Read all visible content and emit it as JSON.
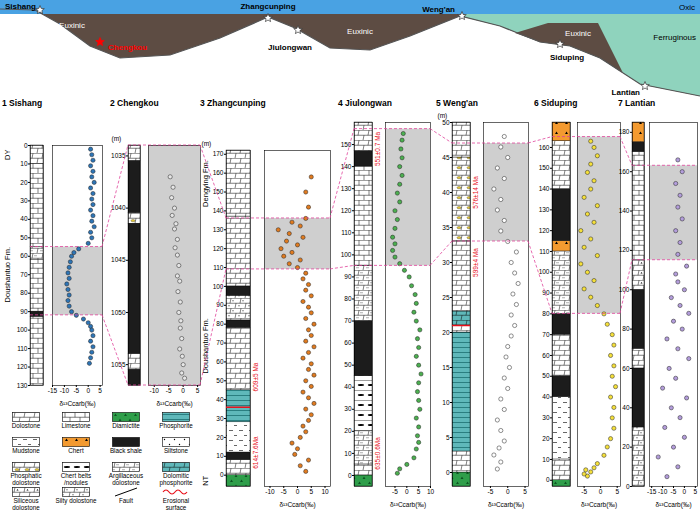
{
  "schematic": {
    "zones": [
      "Oxic",
      "Euxinic",
      "Euxinic",
      "Euxinic",
      "Ferruginous"
    ],
    "sites": [
      {
        "name": "Sishang"
      },
      {
        "name": "Chengkou",
        "color": "red"
      },
      {
        "name": "Zhangcunping"
      },
      {
        "name": "Jiulongwan"
      },
      {
        "name": "Weng'an"
      },
      {
        "name": "Siduping"
      },
      {
        "name": "Lantian"
      }
    ]
  },
  "chart_data": [
    {
      "type": "scatter",
      "title": "1 Sishang",
      "xlabel": "δ¹³Ccarb(‰)",
      "color": "#2e75b6",
      "marker": "circle",
      "xlim": [
        -15,
        6
      ],
      "xticks": [
        -15,
        -10,
        -5,
        0,
        5
      ],
      "ylim": [
        130,
        0
      ],
      "yticks": [
        0,
        10,
        20,
        30,
        40,
        50,
        60,
        70,
        80,
        90,
        100,
        110,
        120,
        130
      ],
      "y": [
        2,
        5,
        8,
        11,
        14,
        17,
        20,
        23,
        26,
        29,
        32,
        35,
        38,
        41,
        44,
        47,
        50,
        53,
        56,
        58,
        60,
        63,
        66,
        69,
        72,
        75,
        78,
        81,
        84,
        87,
        90,
        92,
        94,
        96,
        98,
        100,
        103,
        106,
        109,
        112,
        115,
        118
      ],
      "x": [
        1,
        1.5,
        2,
        1,
        2,
        1.5,
        2.5,
        1,
        2,
        1.5,
        2,
        1,
        2,
        1.5,
        2.5,
        1,
        1.5,
        0,
        -4,
        -6,
        -7,
        -7.5,
        -8,
        -8.5,
        -8,
        -9,
        -8.5,
        -8,
        -8.5,
        -8,
        -7,
        -5,
        -2,
        0,
        1,
        1.5,
        2,
        1,
        2,
        1.5,
        1,
        0.5
      ],
      "shaded_interval": [
        55,
        92
      ],
      "lithology": [
        {
          "from": 0,
          "to": 10,
          "lithology": "Dolostone"
        },
        {
          "from": 10,
          "to": 55,
          "lithology": "Limestone"
        },
        {
          "from": 55,
          "to": 62,
          "lithology": "Argillaceous dolostone"
        },
        {
          "from": 62,
          "to": 90,
          "lithology": "Limestone"
        },
        {
          "from": 90,
          "to": 93,
          "lithology": "Black shale"
        },
        {
          "from": 93,
          "to": 130,
          "lithology": "Limestone"
        }
      ],
      "formations": [
        {
          "label": "DY",
          "from": 0,
          "to": 10
        },
        {
          "label": "Doushantuo Fm.",
          "from": 10,
          "to": 130
        }
      ],
      "ages": [],
      "erosional_surfaces": []
    },
    {
      "type": "scatter",
      "title": "2 Chengkou",
      "xlabel": "δ¹³Ccarb(‰)",
      "ylabel": "(m)",
      "color": "#e6e6e6",
      "marker": "circle",
      "xlim": [
        -12,
        6
      ],
      "xticks": [
        -10,
        -5,
        0,
        5
      ],
      "ylim": [
        1057,
        1034
      ],
      "yticks": [
        1035,
        1040,
        1045,
        1050,
        1055
      ],
      "y": [
        1037,
        1038,
        1039,
        1040,
        1040.7,
        1041.5,
        1042,
        1043,
        1043.8,
        1044.5,
        1045.5,
        1046.5,
        1047,
        1048,
        1049,
        1050,
        1050.8,
        1051.5,
        1052.5,
        1053.5,
        1054.2,
        1055,
        1055.8,
        1056.3
      ],
      "x": [
        -4.5,
        -3.5,
        -4,
        -3,
        -3.8,
        -2.5,
        -3,
        -2,
        -2.8,
        -2,
        -1.5,
        -2,
        -1.2,
        -1.8,
        -1,
        -1.5,
        -0.8,
        -1,
        -0.5,
        -1.2,
        -0.3,
        0,
        -0.5,
        0.5
      ],
      "shaded_interval": [
        1034,
        1057
      ],
      "lithology": [
        {
          "from": 1034,
          "to": 1035.5,
          "lithology": "Dolostone"
        },
        {
          "from": 1035.5,
          "to": 1040.5,
          "lithology": "Black shale"
        },
        {
          "from": 1040.5,
          "to": 1041.5,
          "lithology": "Phosphatic dolostone"
        },
        {
          "from": 1041.5,
          "to": 1054,
          "lithology": "Black shale"
        },
        {
          "from": 1054,
          "to": 1055.5,
          "lithology": "Dolostone"
        },
        {
          "from": 1055.5,
          "to": 1057,
          "lithology": "Black shale"
        }
      ],
      "formations": [],
      "ages": [],
      "erosional_surfaces": []
    },
    {
      "type": "scatter",
      "title": "3 Zhangcunping",
      "xlabel": "δ¹³Ccarb(‰)",
      "ylabel": "(m)",
      "color": "#e07b20",
      "marker": "circle",
      "xlim": [
        -12,
        12
      ],
      "xticks": [
        -10,
        -5,
        0,
        5,
        10
      ],
      "ylim": [
        -6,
        172
      ],
      "yticks": [
        0,
        10,
        20,
        30,
        40,
        50,
        60,
        70,
        80,
        90,
        100,
        110,
        120,
        130,
        140,
        150,
        160,
        170
      ],
      "y": [
        2,
        5,
        8,
        11,
        14,
        17,
        20,
        23,
        26,
        29,
        32,
        35,
        38,
        41,
        44,
        47,
        50,
        53,
        56,
        59,
        62,
        65,
        68,
        71,
        74,
        77,
        80,
        83,
        86,
        89,
        92,
        95,
        98,
        101,
        104,
        107,
        110,
        112,
        114,
        116,
        118,
        120,
        122,
        124,
        126,
        128,
        130,
        132,
        134,
        136,
        142,
        150,
        158
      ],
      "x": [
        3,
        1,
        4,
        -1,
        0,
        -2,
        1,
        3,
        2,
        4,
        5,
        3,
        6,
        4,
        2,
        5,
        3,
        6,
        4,
        5,
        2,
        4,
        6,
        3,
        5,
        4,
        6,
        3,
        5,
        4,
        2,
        5,
        3,
        4,
        2,
        3,
        0,
        -3,
        1,
        -5,
        -2,
        -6,
        0,
        -4,
        2,
        -3,
        -7,
        1,
        -2,
        3,
        4,
        3,
        5
      ],
      "shaded_interval": [
        109,
        136
      ],
      "lithology": [
        {
          "from": -6,
          "to": 0,
          "lithology": "Diamictite"
        },
        {
          "from": 0,
          "to": 8,
          "lithology": "Dolostone"
        },
        {
          "from": 8,
          "to": 12,
          "lithology": "Black shale"
        },
        {
          "from": 12,
          "to": 28,
          "lithology": "Mudstone"
        },
        {
          "from": 28,
          "to": 45,
          "lithology": "Phosphorite"
        },
        {
          "from": 45,
          "to": 78,
          "lithology": "Dolostone"
        },
        {
          "from": 78,
          "to": 82,
          "lithology": "Black shale"
        },
        {
          "from": 82,
          "to": 95,
          "lithology": "Silty dolostone"
        },
        {
          "from": 95,
          "to": 100,
          "lithology": "Black shale"
        },
        {
          "from": 100,
          "to": 137,
          "lithology": "Dolostone"
        },
        {
          "from": 137,
          "to": 172,
          "lithology": "Dolostone"
        }
      ],
      "formations": [
        {
          "label": "NT",
          "from": -6,
          "to": 0
        },
        {
          "label": "Doushantuo Fm.",
          "from": 0,
          "to": 137
        },
        {
          "label": "Dengying Fm.",
          "from": 137,
          "to": 172
        }
      ],
      "ages": [
        {
          "label": "614±7.6Ma",
          "y": 12
        },
        {
          "label": "609±5 Ma",
          "y": 52
        }
      ],
      "erosional_surfaces": [
        36
      ]
    },
    {
      "type": "scatter",
      "title": "4 Jiulongwan",
      "xlabel": "δ¹³Ccarb(‰)",
      "color": "#4caf50",
      "marker": "circle",
      "xlim": [
        -9,
        10
      ],
      "xticks": [
        -5,
        0,
        5,
        10
      ],
      "ylim": [
        -5,
        160
      ],
      "yticks": [
        0,
        10,
        20,
        30,
        40,
        50,
        60,
        70,
        80,
        90,
        100,
        110,
        120,
        130,
        140,
        150
      ],
      "y": [
        1,
        3,
        5,
        8,
        12,
        15,
        18,
        22,
        26,
        30,
        34,
        38,
        42,
        46,
        50,
        54,
        58,
        62,
        66,
        70,
        74,
        78,
        82,
        86,
        90,
        93,
        96,
        99,
        102,
        105,
        108,
        112,
        116,
        120,
        124,
        128,
        132,
        136,
        140,
        144,
        148,
        152,
        155
      ],
      "x": [
        -4,
        -3,
        0,
        3,
        4,
        5,
        4.5,
        5,
        4,
        5.5,
        5,
        4.5,
        5,
        6,
        5,
        4,
        5,
        4.5,
        5.5,
        4,
        3,
        4,
        3.5,
        2,
        1,
        -1,
        -3,
        -5,
        -6,
        -5,
        -6,
        -5,
        -4,
        -5,
        -3,
        -4,
        -3,
        -2,
        -3,
        -2,
        -2.5,
        -2,
        -1.5
      ],
      "shaded_interval": [
        95,
        157
      ],
      "lithology": [
        {
          "from": -5,
          "to": 0,
          "lithology": "Diamictite"
        },
        {
          "from": 0,
          "to": 5,
          "lithology": "Dolostone"
        },
        {
          "from": 5,
          "to": 20,
          "lithology": "Argillaceous dolostone"
        },
        {
          "from": 20,
          "to": 45,
          "lithology": "Chert belts /nodules"
        },
        {
          "from": 45,
          "to": 70,
          "lithology": "Black shale"
        },
        {
          "from": 70,
          "to": 95,
          "lithology": "Argillaceous dolostone"
        },
        {
          "from": 95,
          "to": 140,
          "lithology": "Limestone"
        },
        {
          "from": 140,
          "to": 147,
          "lithology": "Black shale"
        },
        {
          "from": 147,
          "to": 160,
          "lithology": "Dolostone"
        }
      ],
      "formations": [],
      "ages": [
        {
          "label": "635±0.6Ma",
          "y": 10
        },
        {
          "label": "551±0.7 Ma",
          "y": 148
        }
      ],
      "erosional_surfaces": []
    },
    {
      "type": "scatter",
      "title": "5 Weng'an",
      "xlabel": "δ¹³Ccarb(‰)",
      "ylabel": "(m)",
      "color": "#ffffff",
      "marker": "circle",
      "xlim": [
        -7,
        6
      ],
      "xticks": [
        -5,
        0,
        5
      ],
      "ylim": [
        -2,
        50
      ],
      "yticks": [
        0,
        5,
        10,
        15,
        20,
        25,
        30,
        35,
        40,
        45,
        50
      ],
      "y": [
        0.5,
        1.5,
        2.5,
        3.5,
        4.5,
        6,
        7.5,
        9,
        10.5,
        12,
        13.5,
        15,
        16.5,
        18,
        19.5,
        21,
        22.5,
        24,
        25.5,
        27,
        28.5,
        30,
        31.5,
        33,
        34.5,
        36,
        37.5,
        39,
        40.5,
        42,
        43.5,
        45,
        46.5,
        48
      ],
      "x": [
        -3,
        -2,
        -4,
        -2.5,
        -1,
        -2,
        -3,
        -1,
        -2,
        0,
        -1,
        0.5,
        -0.5,
        0,
        1,
        2,
        1,
        2.5,
        1.5,
        3,
        2,
        1,
        2.5,
        0,
        -2,
        -1,
        -3,
        -2,
        -4,
        -1,
        -3,
        0,
        -2,
        -1
      ],
      "shaded_interval": [
        33,
        47
      ],
      "lithology": [
        {
          "from": -2,
          "to": 0,
          "lithology": "Diamictite"
        },
        {
          "from": 0,
          "to": 3,
          "lithology": "Dolostone"
        },
        {
          "from": 3,
          "to": 20,
          "lithology": "Phosphorite"
        },
        {
          "from": 20,
          "to": 21,
          "lithology": "Dolostone"
        },
        {
          "from": 21,
          "to": 23,
          "lithology": "Dolomitic phosphorite"
        },
        {
          "from": 23,
          "to": 33,
          "lithology": "Dolostone"
        },
        {
          "from": 33,
          "to": 45,
          "lithology": "Phosphatic dolostone"
        },
        {
          "from": 45,
          "to": 50,
          "lithology": "Dolostone"
        }
      ],
      "formations": [],
      "ages": [
        {
          "label": "576±14 Ma",
          "y": 40
        },
        {
          "label": "599±4 Ma",
          "y": 30
        }
      ],
      "erosional_surfaces": [
        21
      ]
    },
    {
      "type": "scatter",
      "title": "6 Siduping",
      "xlabel": "δ¹³Ccarb(‰)",
      "color": "#f5e03a",
      "marker": "circle",
      "xlim": [
        -7,
        6
      ],
      "xticks": [
        -5,
        0,
        5
      ],
      "ylim": [
        -3,
        172
      ],
      "yticks": [
        0,
        10,
        20,
        30,
        40,
        50,
        60,
        70,
        80,
        90,
        100,
        110,
        120,
        130,
        140,
        150,
        160
      ],
      "y": [
        2,
        3,
        4,
        5,
        6,
        8,
        12,
        16,
        20,
        25,
        30,
        35,
        40,
        45,
        50,
        55,
        60,
        65,
        70,
        75,
        80,
        84,
        88,
        92,
        96,
        100,
        104,
        108,
        112,
        116,
        120,
        124,
        128,
        132,
        136,
        140,
        144,
        148,
        152,
        156,
        160,
        163
      ],
      "x": [
        -4,
        -5,
        -3,
        -4.5,
        -2,
        -1,
        1,
        2,
        3,
        4,
        3.5,
        4,
        3,
        4.5,
        3.5,
        4,
        3,
        4,
        3.5,
        2,
        1,
        -1,
        -3,
        -5,
        -2,
        -4,
        -6,
        -1,
        -5,
        -3,
        -6,
        -2,
        -4,
        -1,
        -5,
        -3,
        -2,
        -4,
        -3,
        -1,
        -2,
        -3
      ],
      "shaded_interval": [
        80,
        165
      ],
      "lithology": [
        {
          "from": -3,
          "to": 0,
          "lithology": "Diamictite"
        },
        {
          "from": 0,
          "to": 10,
          "lithology": "Dolostone"
        },
        {
          "from": 10,
          "to": 40,
          "lithology": "Mudstone"
        },
        {
          "from": 40,
          "to": 50,
          "lithology": "Black shale"
        },
        {
          "from": 50,
          "to": 70,
          "lithology": "Dolostone"
        },
        {
          "from": 70,
          "to": 80,
          "lithology": "Black shale"
        },
        {
          "from": 80,
          "to": 110,
          "lithology": "Argillaceous dolostone"
        },
        {
          "from": 110,
          "to": 115,
          "lithology": "Chert"
        },
        {
          "from": 115,
          "to": 140,
          "lithology": "Black shale"
        },
        {
          "from": 140,
          "to": 163,
          "lithology": "Dolostone"
        },
        {
          "from": 163,
          "to": 172,
          "lithology": "Chert"
        }
      ],
      "formations": [],
      "ages": [],
      "erosional_surfaces": []
    },
    {
      "type": "scatter",
      "title": "7 Lantian",
      "xlabel": "δ¹³Ccarb(‰)",
      "color": "#b39ddb",
      "marker": "circle",
      "xlim": [
        -16,
        6
      ],
      "xticks": [
        -15,
        -10,
        -5,
        0,
        5
      ],
      "ylim": [
        0,
        185
      ],
      "yticks": [
        0,
        20,
        40,
        60,
        80,
        100,
        120,
        140,
        160,
        180
      ],
      "y": [
        5,
        10,
        15,
        20,
        25,
        30,
        35,
        40,
        45,
        50,
        55,
        60,
        65,
        70,
        75,
        80,
        84,
        88,
        92,
        96,
        100,
        104,
        108,
        112,
        118,
        124,
        130,
        136,
        142,
        148,
        154,
        160,
        166
      ],
      "x": [
        -8,
        -3,
        -12,
        -5,
        0,
        -9,
        -2,
        -6,
        1,
        -10,
        -4,
        -7,
        2,
        -3,
        -8,
        -1,
        -5,
        2,
        -2,
        -6,
        0,
        -3,
        -4,
        1,
        -3,
        -2,
        -4,
        -1,
        -3,
        -2,
        -4,
        -1,
        -3
      ],
      "shaded_interval": [
        115,
        163
      ],
      "lithology": [
        {
          "from": 0,
          "to": 30,
          "lithology": "Silty dolostone"
        },
        {
          "from": 30,
          "to": 60,
          "lithology": "Black shale"
        },
        {
          "from": 60,
          "to": 70,
          "lithology": "Dolostone"
        },
        {
          "from": 70,
          "to": 100,
          "lithology": "Black shale"
        },
        {
          "from": 100,
          "to": 115,
          "lithology": "Siliceous dolostone"
        },
        {
          "from": 115,
          "to": 170,
          "lithology": "Limestone"
        },
        {
          "from": 170,
          "to": 175,
          "lithology": "Black shale"
        },
        {
          "from": 175,
          "to": 185,
          "lithology": "Chert"
        }
      ],
      "formations": [],
      "ages": [],
      "erosional_surfaces": []
    }
  ],
  "legend_items": [
    "Dolostone",
    "Limestone",
    "Diamictite",
    "Phosphorite",
    "Mudstone",
    "Chert",
    "Black shale",
    "Siltstone",
    "Phosphatic dolostone",
    "Chert belts /nodules",
    "Argillaceous dolostone",
    "Dolomitic phosphorite",
    "Siliceous dolostone",
    "Silty dolostone",
    "Fault",
    "Erosional surface"
  ]
}
